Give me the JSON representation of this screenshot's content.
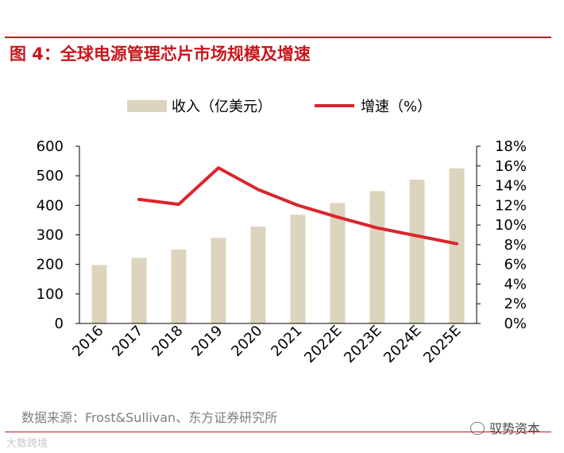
{
  "figure": {
    "title": "图 4：全球电源管理芯片市场规模及增速",
    "source": "数据来源：Frost&Sullivan、东方证券研究所",
    "watermark_left": "大数跨境",
    "watermark_right": "驭势资本"
  },
  "chart_data": {
    "type": "bar",
    "title": "图 4：全球电源管理芯片市场规模及增速",
    "categories": [
      "2016",
      "2017",
      "2018",
      "2019",
      "2020",
      "2021",
      "2022E",
      "2023E",
      "2024E",
      "2025E"
    ],
    "series": [
      {
        "name": "收入（亿美元）",
        "type": "bar",
        "axis": "left",
        "color": "#ddd4bd",
        "values": [
          198,
          222,
          250,
          290,
          328,
          368,
          408,
          448,
          487,
          525
        ]
      },
      {
        "name": "增速（%）",
        "type": "line",
        "axis": "right",
        "color": "#d9262c",
        "values": [
          null,
          12.6,
          12.1,
          15.8,
          13.6,
          12.0,
          10.8,
          9.7,
          8.9,
          8.1
        ]
      }
    ],
    "y_left": {
      "min": 0,
      "max": 600,
      "ticks": [
        0,
        100,
        200,
        300,
        400,
        500,
        600
      ]
    },
    "y_right": {
      "min": 0,
      "max": 18,
      "ticks": [
        "0%",
        "2%",
        "4%",
        "6%",
        "8%",
        "10%",
        "12%",
        "14%",
        "16%",
        "18%"
      ]
    },
    "legend_position": "top",
    "grid": false
  }
}
